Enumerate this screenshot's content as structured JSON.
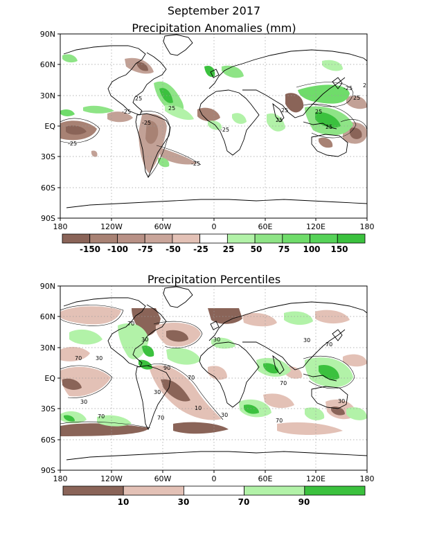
{
  "header": {
    "title": "September 2017"
  },
  "colors": {
    "dry_strong": "#8a6458",
    "dry_mod": "#a88274",
    "dry_mid": "#c2a196",
    "dry_light": "#e3c1b6",
    "wet_light": "#b2f2a8",
    "wet_mod": "#8ee486",
    "wet_mid": "#6fdc6a",
    "wet_strong": "#3bc13e",
    "land": "#ffffff",
    "coast": "#000000",
    "grid": "#9a9a9a"
  },
  "anomaly_panel": {
    "title": "Precipitation Anomalies (mm)",
    "lat_ticks": [
      "90N",
      "60N",
      "30N",
      "EQ",
      "30S",
      "60S",
      "90S"
    ],
    "lon_ticks": [
      "180",
      "120W",
      "60W",
      "0",
      "60E",
      "120E",
      "180"
    ],
    "colorbar": {
      "labels": [
        "-150",
        "-100",
        "-75",
        "-50",
        "-25",
        "25",
        "50",
        "75",
        "100",
        "150"
      ],
      "colors": [
        "#8a6458",
        "#a88274",
        "#b89186",
        "#c9a59a",
        "#e3c1b6",
        "#ffffff",
        "#b2f2a8",
        "#8ee486",
        "#6fdc6a",
        "#56d258",
        "#3bc13e"
      ]
    },
    "contour_labels": [
      "25",
      "25",
      "25",
      "25",
      "25",
      "25",
      "25",
      "25",
      "-25",
      "-25",
      "-25",
      "-25",
      "-25",
      "-25"
    ]
  },
  "percentile_panel": {
    "title": "Precipitation Percentiles",
    "lat_ticks": [
      "90N",
      "60N",
      "30N",
      "EQ",
      "30S",
      "60S",
      "90S"
    ],
    "lon_ticks": [
      "180",
      "120W",
      "60W",
      "0",
      "60E",
      "120E",
      "180"
    ],
    "colorbar": {
      "labels": [
        "10",
        "30",
        "70",
        "90"
      ],
      "colors": [
        "#8a6458",
        "#e3c1b6",
        "#ffffff",
        "#b2f2a8",
        "#3bc13e"
      ]
    },
    "contour_labels": [
      "70",
      "70",
      "70",
      "70",
      "70",
      "70",
      "70",
      "70",
      "30",
      "30",
      "30",
      "30",
      "30",
      "30",
      "30",
      "30",
      "90",
      "10"
    ]
  }
}
